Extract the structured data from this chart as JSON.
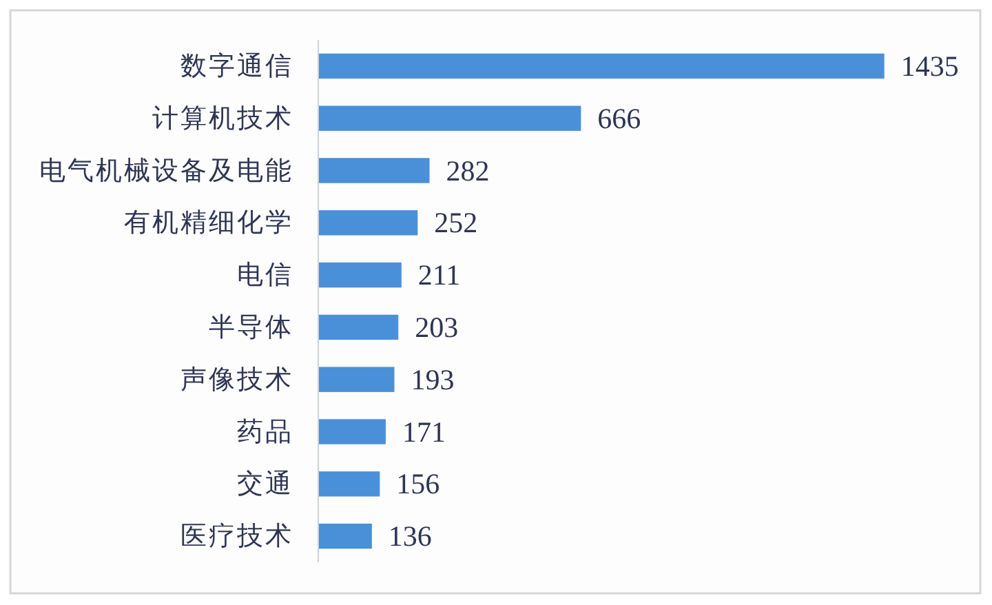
{
  "chart_data": {
    "type": "bar",
    "orientation": "horizontal",
    "categories": [
      "数字通信",
      "计算机技术",
      "电气机械设备及电能",
      "有机精细化学",
      "电信",
      "半导体",
      "声像技术",
      "药品",
      "交通",
      "医疗技术"
    ],
    "values": [
      1435,
      666,
      282,
      252,
      211,
      203,
      193,
      171,
      156,
      136
    ],
    "color": "#4a90d9",
    "data_labels": true
  }
}
